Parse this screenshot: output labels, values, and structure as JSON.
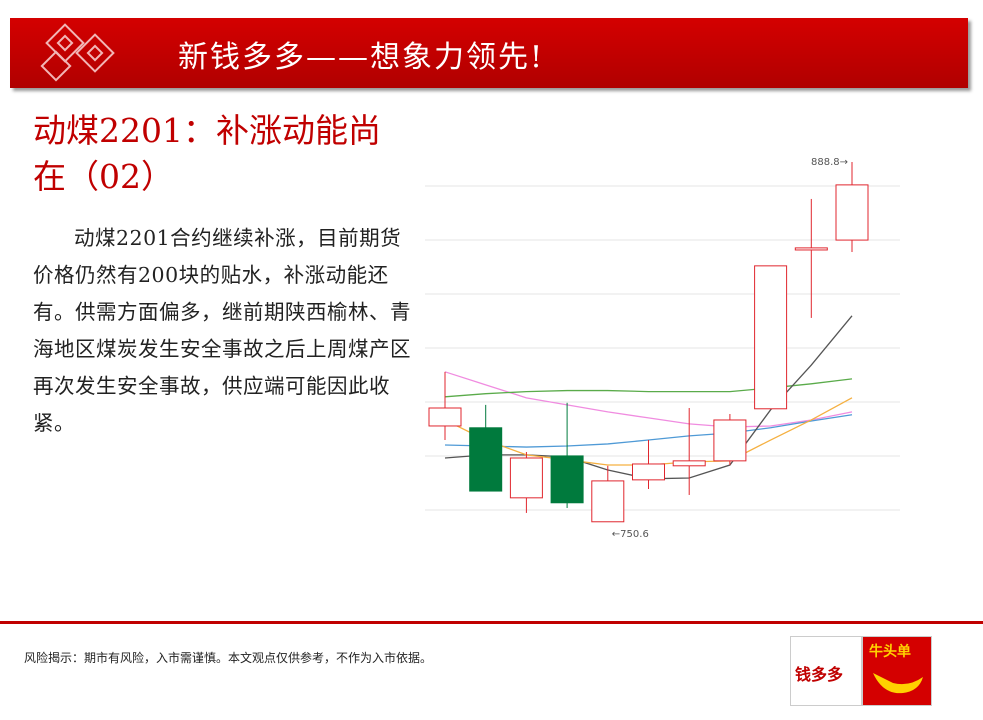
{
  "header": {
    "title": "新钱多多——想象力领先!"
  },
  "slide_title": "动煤2201：补涨动能尚在（02）",
  "body": "动煤2201合约继续补涨，目前期货价格仍然有200块的贴水，补涨动能还有。供需方面偏多，继前期陕西榆林、青海地区煤炭发生安全事故之后上周煤产区再次发生安全事故，供应端可能因此收紧。",
  "footer": {
    "disclaimer": "风险揭示：期市有风险，入市需谨慎。本文观点仅供参考，不作为入市依据。",
    "logo_left": "钱多多",
    "logo_right": "牛头单"
  },
  "chart_data": {
    "type": "candlestick",
    "ylim": [
      743.6,
      893.4
    ],
    "up_color": "#e0262e",
    "down_color": "#007a3d",
    "open": [
      787.4,
      786.7,
      759.8,
      775.9,
      750.6,
      766.7,
      772.1,
      774.0,
      794.0,
      855.0,
      858.8
    ],
    "high": [
      808.2,
      795.5,
      777.4,
      796.3,
      772.1,
      782.0,
      794.3,
      792.0,
      848.9,
      874.6,
      888.8
    ],
    "low": [
      782.0,
      762.4,
      754.0,
      755.9,
      750.6,
      763.2,
      760.9,
      772.4,
      794.0,
      828.9,
      854.2
    ],
    "close": [
      794.3,
      762.4,
      775.1,
      757.9,
      766.3,
      772.8,
      774.0,
      789.7,
      848.9,
      855.8,
      880.0
    ],
    "series": [
      {
        "color": "#f08ce0",
        "values": [
          808.2,
          803.2,
          798.2,
          795.5,
          792.8,
          790.5,
          788.2,
          787.0,
          787.4,
          789.7,
          792.8
        ]
      },
      {
        "color": "#5aab4a",
        "values": [
          798.6,
          799.8,
          800.6,
          801.0,
          801.0,
          800.6,
          800.6,
          800.6,
          802.0,
          803.6,
          805.5
        ]
      },
      {
        "color": "#4f9ad6",
        "values": [
          780.1,
          779.7,
          779.3,
          779.7,
          780.5,
          782.0,
          783.6,
          784.7,
          786.7,
          789.3,
          791.7
        ]
      },
      {
        "color": "#555555",
        "values": [
          775.1,
          776.3,
          776.3,
          775.5,
          770.5,
          767.1,
          767.4,
          772.4,
          793.6,
          810.8,
          829.7
        ]
      },
      {
        "color": "#f5b041",
        "values": [
          789.7,
          782.0,
          776.3,
          774.4,
          772.4,
          772.4,
          773.6,
          774.0,
          782.0,
          789.7,
          798.2
        ]
      }
    ],
    "annotations": [
      {
        "text": "888.8→",
        "index": 10,
        "value": 888.8
      },
      {
        "text": "←750.6",
        "index": 4,
        "value": 750.6
      }
    ]
  }
}
